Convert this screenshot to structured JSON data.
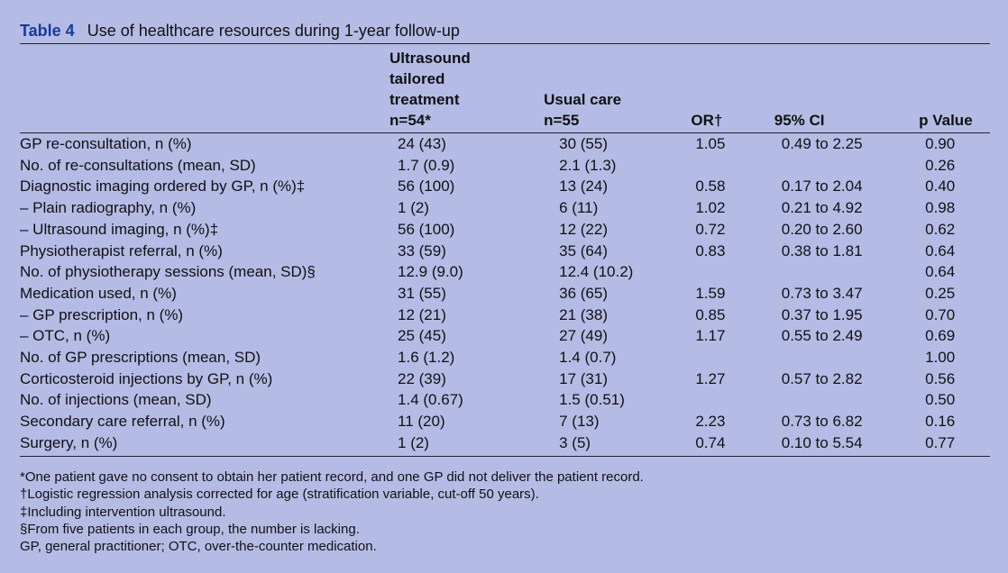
{
  "caption": {
    "label": "Table 4",
    "title": "Use of healthcare resources during 1-year follow-up"
  },
  "headers": [
    [],
    [
      "Ultrasound",
      "tailored",
      "treatment",
      "n=54*"
    ],
    [
      "Usual care",
      "n=55"
    ],
    [
      "OR†"
    ],
    [
      "95% CI"
    ],
    [
      "p Value"
    ]
  ],
  "rows": [
    [
      "GP re-consultation, n (%)",
      "24 (43)",
      "30 (55)",
      "1.05",
      "0.49 to 2.25",
      "0.90"
    ],
    [
      "No. of re-consultations (mean, SD)",
      "1.7 (0.9)",
      "2.1 (1.3)",
      "",
      "",
      "0.26"
    ],
    [
      "Diagnostic imaging ordered by GP, n (%)‡",
      "56 (100)",
      "13 (24)",
      "0.58",
      "0.17 to 2.04",
      "0.40"
    ],
    [
      "– Plain radiography, n (%)",
      "1 (2)",
      "6 (11)",
      "1.02",
      "0.21 to 4.92",
      "0.98"
    ],
    [
      "– Ultrasound imaging, n (%)‡",
      "56 (100)",
      "12 (22)",
      "0.72",
      "0.20 to 2.60",
      "0.62"
    ],
    [
      "Physiotherapist referral, n (%)",
      "33 (59)",
      "35 (64)",
      "0.83",
      "0.38 to 1.81",
      "0.64"
    ],
    [
      "No. of physiotherapy sessions (mean, SD)§",
      "12.9 (9.0)",
      "12.4 (10.2)",
      "",
      "",
      "0.64"
    ],
    [
      "Medication used, n (%)",
      "31 (55)",
      "36 (65)",
      "1.59",
      "0.73 to 3.47",
      "0.25"
    ],
    [
      "– GP prescription, n (%)",
      "12 (21)",
      "21 (38)",
      "0.85",
      "0.37 to 1.95",
      "0.70"
    ],
    [
      "– OTC, n (%)",
      "25 (45)",
      "27 (49)",
      "1.17",
      "0.55 to 2.49",
      "0.69"
    ],
    [
      "No. of GP prescriptions (mean, SD)",
      "1.6 (1.2)",
      "1.4 (0.7)",
      "",
      "",
      "1.00"
    ],
    [
      "Corticosteroid injections by GP, n (%)",
      "22 (39)",
      "17 (31)",
      "1.27",
      "0.57 to 2.82",
      "0.56"
    ],
    [
      "No. of injections (mean, SD)",
      "1.4 (0.67)",
      "1.5 (0.51)",
      "",
      "",
      "0.50"
    ],
    [
      "Secondary care referral, n (%)",
      "11 (20)",
      "7 (13)",
      "2.23",
      "0.73 to 6.82",
      "0.16"
    ],
    [
      "Surgery, n (%)",
      "1 (2)",
      "3 (5)",
      "0.74",
      "0.10 to 5.54",
      "0.77"
    ]
  ],
  "footnotes": [
    "*One patient gave no consent to obtain her patient record, and one GP did not deliver the patient record.",
    "†Logistic regression analysis corrected for age (stratification variable, cut-off 50 years).",
    "‡Including intervention ultrasound.",
    "§From five patients in each group, the number is lacking.",
    "GP, general practitioner; OTC, over-the-counter medication."
  ],
  "colors": {
    "background": "#b4bce5",
    "caption_label": "#1a3a9a"
  }
}
